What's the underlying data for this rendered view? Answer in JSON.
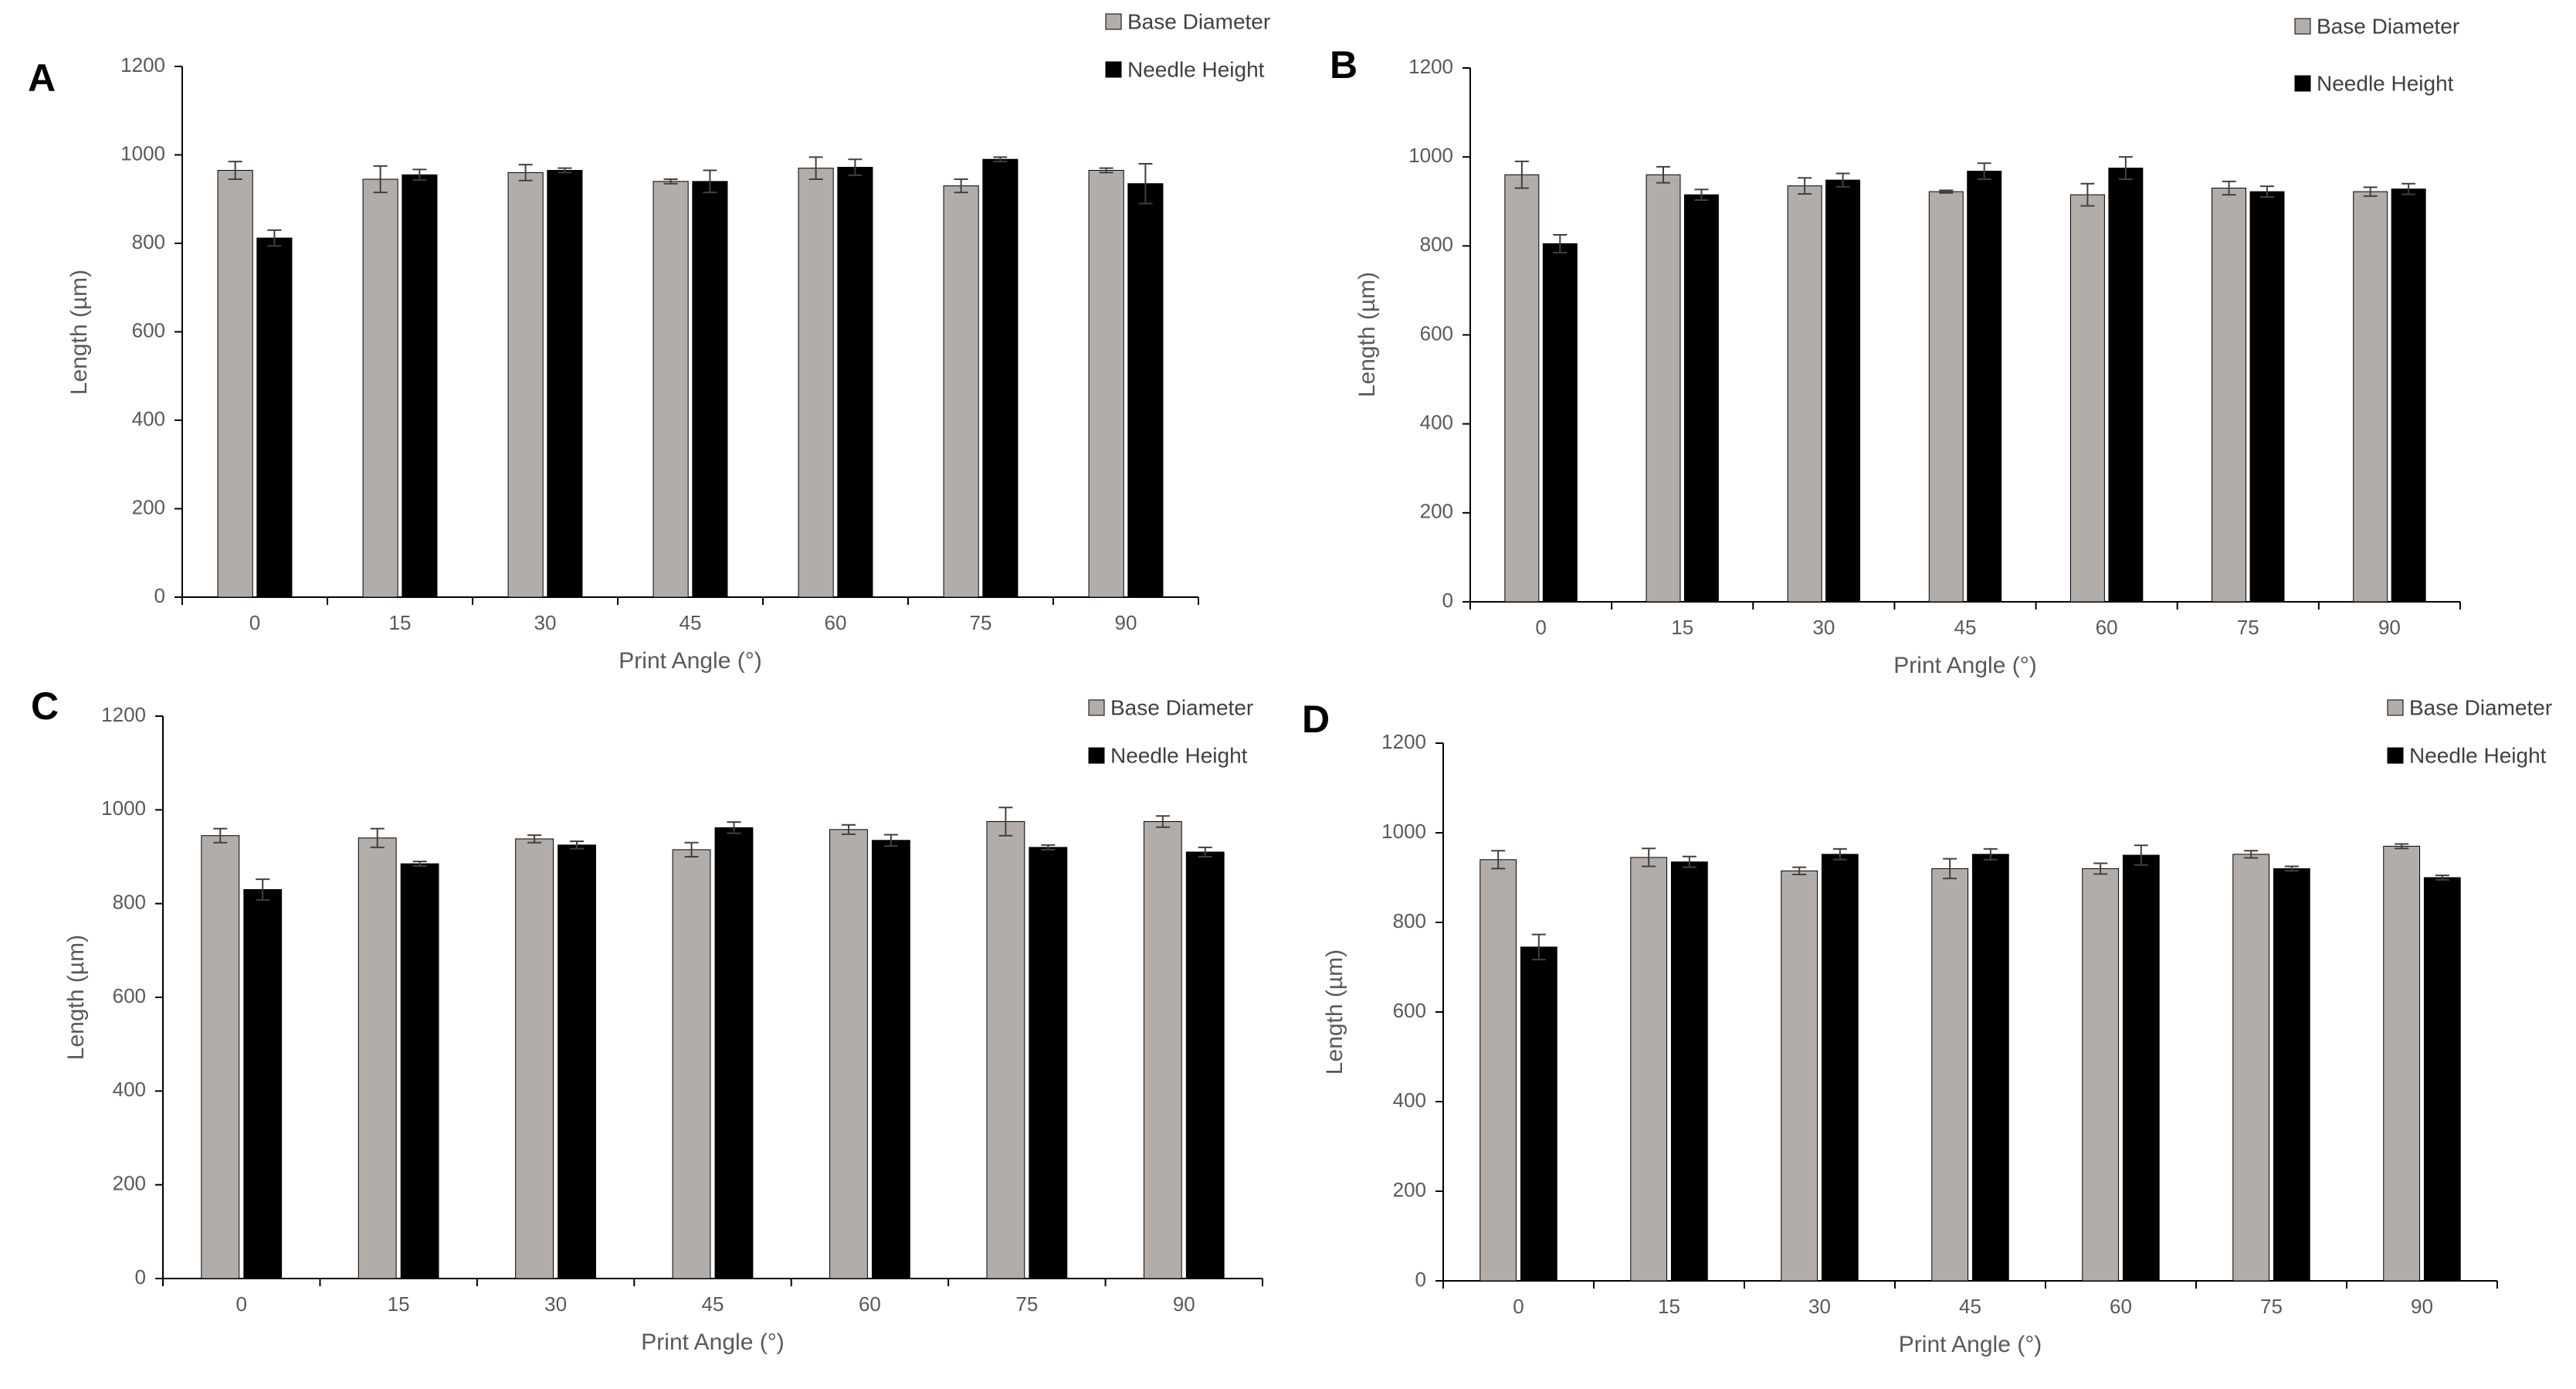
{
  "colors": {
    "base": "#b3ada9",
    "needle": "#000000",
    "axis": "#000000",
    "text": "#595959",
    "error": "#404040"
  },
  "chart_data": [
    {
      "panel": "A",
      "type": "bar",
      "categories": [
        "0",
        "15",
        "30",
        "45",
        "60",
        "75",
        "90"
      ],
      "xlabel": "Print Angle (°)",
      "ylabel": "Length (µm)",
      "ylim": [
        0,
        1200
      ],
      "yticks": [
        0,
        200,
        400,
        600,
        800,
        1000,
        1200
      ],
      "legend": "top-right",
      "series": [
        {
          "name": "Base Diameter",
          "values": [
            965,
            945,
            960,
            940,
            970,
            930,
            965
          ],
          "errors": [
            20,
            30,
            18,
            5,
            25,
            15,
            5
          ]
        },
        {
          "name": "Needle Height",
          "values": [
            812,
            955,
            965,
            940,
            972,
            990,
            935
          ],
          "errors": [
            18,
            12,
            5,
            25,
            18,
            5,
            45
          ]
        }
      ]
    },
    {
      "panel": "B",
      "type": "bar",
      "categories": [
        "0",
        "15",
        "30",
        "45",
        "60",
        "75",
        "90"
      ],
      "xlabel": "Print Angle (°)",
      "ylabel": "Length (µm)",
      "ylim": [
        0,
        1200
      ],
      "yticks": [
        0,
        200,
        400,
        600,
        800,
        1000,
        1200
      ],
      "legend": "top-right",
      "series": [
        {
          "name": "Base Diameter",
          "values": [
            960,
            960,
            935,
            922,
            915,
            930,
            922
          ],
          "errors": [
            30,
            18,
            18,
            3,
            25,
            15,
            10
          ]
        },
        {
          "name": "Needle Height",
          "values": [
            805,
            915,
            948,
            968,
            975,
            922,
            928
          ],
          "errors": [
            20,
            12,
            15,
            18,
            25,
            12,
            12
          ]
        }
      ]
    },
    {
      "panel": "C",
      "type": "bar",
      "categories": [
        "0",
        "15",
        "30",
        "45",
        "60",
        "75",
        "90"
      ],
      "xlabel": "Print Angle (°)",
      "ylabel": "Length (µm)",
      "ylim": [
        0,
        1200
      ],
      "yticks": [
        0,
        200,
        400,
        600,
        800,
        1000,
        1200
      ],
      "legend": "top-right",
      "series": [
        {
          "name": "Base Diameter",
          "values": [
            945,
            940,
            938,
            915,
            958,
            975,
            975
          ],
          "errors": [
            15,
            20,
            8,
            15,
            10,
            30,
            12
          ]
        },
        {
          "name": "Needle Height",
          "values": [
            830,
            885,
            925,
            962,
            935,
            920,
            910
          ],
          "errors": [
            22,
            5,
            8,
            12,
            12,
            5,
            10
          ]
        }
      ]
    },
    {
      "panel": "D",
      "type": "bar",
      "categories": [
        "0",
        "15",
        "30",
        "45",
        "60",
        "75",
        "90"
      ],
      "xlabel": "Print Angle (°)",
      "ylabel": "Length (µm)",
      "ylim": [
        0,
        1200
      ],
      "yticks": [
        0,
        200,
        400,
        600,
        800,
        1000,
        1200
      ],
      "legend": "top-right",
      "series": [
        {
          "name": "Base Diameter",
          "values": [
            940,
            945,
            915,
            920,
            920,
            952,
            970
          ],
          "errors": [
            20,
            20,
            8,
            22,
            12,
            8,
            5
          ]
        },
        {
          "name": "Needle Height",
          "values": [
            745,
            935,
            952,
            952,
            950,
            920,
            900
          ],
          "errors": [
            28,
            12,
            12,
            12,
            22,
            5,
            5
          ]
        }
      ]
    }
  ]
}
